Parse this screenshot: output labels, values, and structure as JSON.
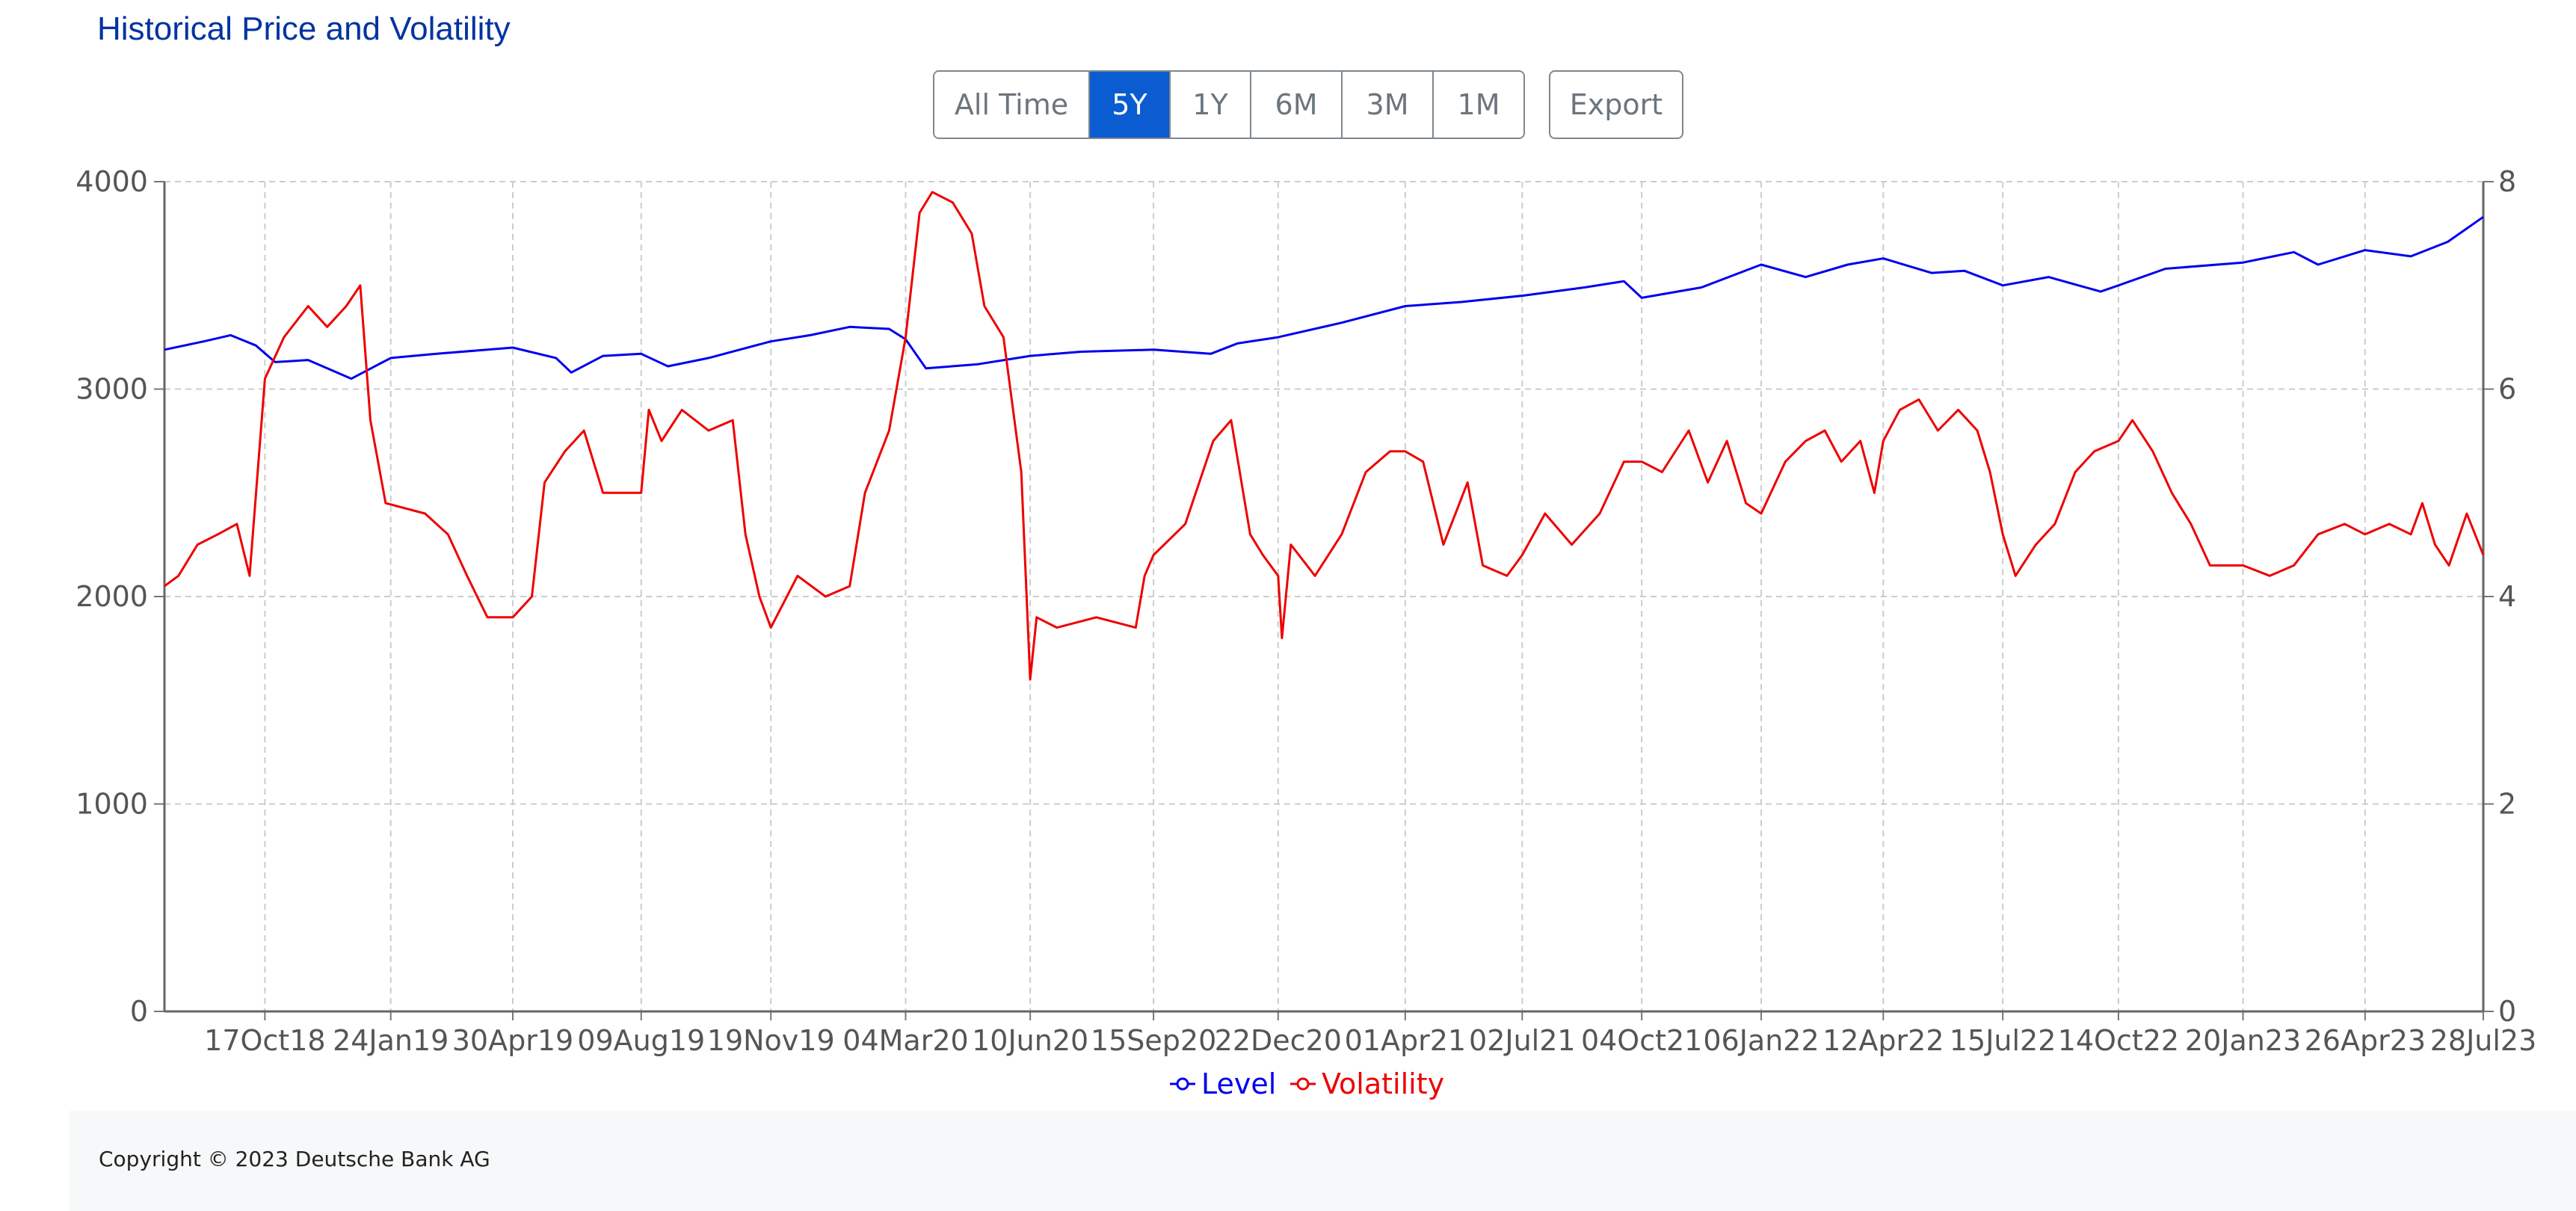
{
  "title": "Historical Price and Volatility",
  "range_buttons": [
    "All Time",
    "5Y",
    "1Y",
    "6M",
    "3M",
    "1M"
  ],
  "active_range": "5Y",
  "export_label": "Export",
  "copyright": "Copyright © 2023 Deutsche Bank AG",
  "colors": {
    "title": "#0033a0",
    "level": "#0000ee",
    "volatility": "#ee0000",
    "active_button": "#0a5cd0",
    "grid": "#cccccc"
  },
  "chart_data": {
    "type": "line",
    "x_ticks": [
      "17Oct18",
      "24Jan19",
      "30Apr19",
      "09Aug19",
      "19Nov19",
      "04Mar20",
      "10Jun20",
      "15Sep20",
      "22Dec20",
      "01Apr21",
      "02Jul21",
      "04Oct21",
      "06Jan22",
      "12Apr22",
      "15Jul22",
      "14Oct22",
      "20Jan23",
      "26Apr23",
      "28Jul23"
    ],
    "x_range": [
      "2018-07-30",
      "2023-07-28"
    ],
    "y_left": {
      "ticks": [
        0,
        1000,
        2000,
        3000,
        4000
      ],
      "range": [
        0,
        4000
      ]
    },
    "y_right": {
      "ticks": [
        0,
        2,
        4,
        6,
        8
      ],
      "range": [
        0,
        8
      ]
    },
    "grid": true,
    "legend_position": "bottom-center",
    "series": [
      {
        "name": "Level",
        "axis": "left",
        "points": [
          [
            "2018-07-30",
            3190
          ],
          [
            "2018-08-30",
            3230
          ],
          [
            "2018-09-20",
            3260
          ],
          [
            "2018-10-10",
            3210
          ],
          [
            "2018-10-25",
            3130
          ],
          [
            "2018-11-20",
            3140
          ],
          [
            "2018-12-24",
            3050
          ],
          [
            "2019-01-24",
            3150
          ],
          [
            "2019-03-01",
            3170
          ],
          [
            "2019-04-30",
            3200
          ],
          [
            "2019-06-03",
            3150
          ],
          [
            "2019-06-15",
            3080
          ],
          [
            "2019-07-10",
            3160
          ],
          [
            "2019-08-09",
            3170
          ],
          [
            "2019-08-30",
            3110
          ],
          [
            "2019-10-01",
            3150
          ],
          [
            "2019-11-19",
            3230
          ],
          [
            "2019-12-20",
            3260
          ],
          [
            "2020-01-20",
            3300
          ],
          [
            "2020-02-20",
            3290
          ],
          [
            "2020-03-04",
            3240
          ],
          [
            "2020-03-20",
            3100
          ],
          [
            "2020-04-30",
            3120
          ],
          [
            "2020-06-10",
            3160
          ],
          [
            "2020-07-20",
            3180
          ],
          [
            "2020-09-15",
            3190
          ],
          [
            "2020-10-30",
            3170
          ],
          [
            "2020-11-20",
            3220
          ],
          [
            "2020-12-22",
            3250
          ],
          [
            "2021-02-10",
            3320
          ],
          [
            "2021-04-01",
            3400
          ],
          [
            "2021-05-15",
            3420
          ],
          [
            "2021-07-02",
            3450
          ],
          [
            "2021-08-20",
            3490
          ],
          [
            "2021-09-20",
            3520
          ],
          [
            "2021-10-04",
            3440
          ],
          [
            "2021-11-20",
            3490
          ],
          [
            "2022-01-06",
            3600
          ],
          [
            "2022-02-10",
            3540
          ],
          [
            "2022-03-15",
            3600
          ],
          [
            "2022-04-12",
            3630
          ],
          [
            "2022-05-20",
            3560
          ],
          [
            "2022-06-15",
            3570
          ],
          [
            "2022-07-15",
            3500
          ],
          [
            "2022-08-20",
            3540
          ],
          [
            "2022-09-30",
            3470
          ],
          [
            "2022-10-14",
            3500
          ],
          [
            "2022-11-20",
            3580
          ],
          [
            "2023-01-20",
            3610
          ],
          [
            "2023-03-01",
            3660
          ],
          [
            "2023-03-20",
            3600
          ],
          [
            "2023-04-26",
            3670
          ],
          [
            "2023-06-01",
            3640
          ],
          [
            "2023-06-30",
            3710
          ],
          [
            "2023-07-28",
            3830
          ]
        ]
      },
      {
        "name": "Volatility",
        "axis": "right",
        "points": [
          [
            "2018-07-30",
            4.1
          ],
          [
            "2018-08-10",
            4.2
          ],
          [
            "2018-08-25",
            4.5
          ],
          [
            "2018-09-10",
            4.6
          ],
          [
            "2018-09-25",
            4.7
          ],
          [
            "2018-10-05",
            4.2
          ],
          [
            "2018-10-17",
            6.1
          ],
          [
            "2018-11-01",
            6.5
          ],
          [
            "2018-11-20",
            6.8
          ],
          [
            "2018-12-05",
            6.6
          ],
          [
            "2018-12-20",
            6.8
          ],
          [
            "2018-12-31",
            7.0
          ],
          [
            "2019-01-08",
            5.7
          ],
          [
            "2019-01-20",
            4.9
          ],
          [
            "2019-02-20",
            4.8
          ],
          [
            "2019-03-10",
            4.6
          ],
          [
            "2019-03-25",
            4.2
          ],
          [
            "2019-04-10",
            3.8
          ],
          [
            "2019-04-30",
            3.8
          ],
          [
            "2019-05-15",
            4.0
          ],
          [
            "2019-05-25",
            5.1
          ],
          [
            "2019-06-10",
            5.4
          ],
          [
            "2019-06-25",
            5.6
          ],
          [
            "2019-07-10",
            5.0
          ],
          [
            "2019-08-09",
            5.0
          ],
          [
            "2019-08-15",
            5.8
          ],
          [
            "2019-08-25",
            5.5
          ],
          [
            "2019-09-10",
            5.8
          ],
          [
            "2019-10-01",
            5.6
          ],
          [
            "2019-10-20",
            5.7
          ],
          [
            "2019-10-30",
            4.6
          ],
          [
            "2019-11-10",
            4.0
          ],
          [
            "2019-11-19",
            3.7
          ],
          [
            "2019-12-10",
            4.2
          ],
          [
            "2020-01-01",
            4.0
          ],
          [
            "2020-01-20",
            4.1
          ],
          [
            "2020-02-01",
            5.0
          ],
          [
            "2020-02-20",
            5.6
          ],
          [
            "2020-03-04",
            6.5
          ],
          [
            "2020-03-15",
            7.7
          ],
          [
            "2020-03-25",
            7.9
          ],
          [
            "2020-04-10",
            7.8
          ],
          [
            "2020-04-25",
            7.5
          ],
          [
            "2020-05-05",
            6.8
          ],
          [
            "2020-05-20",
            6.5
          ],
          [
            "2020-06-03",
            5.2
          ],
          [
            "2020-06-10",
            3.2
          ],
          [
            "2020-06-15",
            3.8
          ],
          [
            "2020-07-01",
            3.7
          ],
          [
            "2020-08-01",
            3.8
          ],
          [
            "2020-09-01",
            3.7
          ],
          [
            "2020-09-08",
            4.2
          ],
          [
            "2020-09-15",
            4.4
          ],
          [
            "2020-10-10",
            4.7
          ],
          [
            "2020-11-01",
            5.5
          ],
          [
            "2020-11-15",
            5.7
          ],
          [
            "2020-11-30",
            4.6
          ],
          [
            "2020-12-10",
            4.4
          ],
          [
            "2020-12-22",
            4.2
          ],
          [
            "2020-12-25",
            3.6
          ],
          [
            "2021-01-01",
            4.5
          ],
          [
            "2021-01-20",
            4.2
          ],
          [
            "2021-02-10",
            4.6
          ],
          [
            "2021-03-01",
            5.2
          ],
          [
            "2021-03-20",
            5.4
          ],
          [
            "2021-04-01",
            5.4
          ],
          [
            "2021-04-15",
            5.3
          ],
          [
            "2021-05-01",
            4.5
          ],
          [
            "2021-05-20",
            5.1
          ],
          [
            "2021-06-01",
            4.3
          ],
          [
            "2021-06-20",
            4.2
          ],
          [
            "2021-07-02",
            4.4
          ],
          [
            "2021-07-20",
            4.8
          ],
          [
            "2021-08-10",
            4.5
          ],
          [
            "2021-09-01",
            4.8
          ],
          [
            "2021-09-20",
            5.3
          ],
          [
            "2021-10-04",
            5.3
          ],
          [
            "2021-10-20",
            5.2
          ],
          [
            "2021-11-10",
            5.6
          ],
          [
            "2021-11-25",
            5.1
          ],
          [
            "2021-12-10",
            5.5
          ],
          [
            "2021-12-25",
            4.9
          ],
          [
            "2022-01-06",
            4.8
          ],
          [
            "2022-01-25",
            5.3
          ],
          [
            "2022-02-10",
            5.5
          ],
          [
            "2022-02-25",
            5.6
          ],
          [
            "2022-03-10",
            5.3
          ],
          [
            "2022-03-25",
            5.5
          ],
          [
            "2022-04-05",
            5.0
          ],
          [
            "2022-04-12",
            5.5
          ],
          [
            "2022-04-25",
            5.8
          ],
          [
            "2022-05-10",
            5.9
          ],
          [
            "2022-05-25",
            5.6
          ],
          [
            "2022-06-10",
            5.8
          ],
          [
            "2022-06-25",
            5.6
          ],
          [
            "2022-07-05",
            5.2
          ],
          [
            "2022-07-15",
            4.6
          ],
          [
            "2022-07-25",
            4.2
          ],
          [
            "2022-08-10",
            4.5
          ],
          [
            "2022-08-25",
            4.7
          ],
          [
            "2022-09-10",
            5.2
          ],
          [
            "2022-09-25",
            5.4
          ],
          [
            "2022-10-14",
            5.5
          ],
          [
            "2022-10-25",
            5.7
          ],
          [
            "2022-11-10",
            5.4
          ],
          [
            "2022-11-25",
            5.0
          ],
          [
            "2022-12-10",
            4.7
          ],
          [
            "2022-12-25",
            4.3
          ],
          [
            "2023-01-20",
            4.3
          ],
          [
            "2023-02-10",
            4.2
          ],
          [
            "2023-03-01",
            4.3
          ],
          [
            "2023-03-20",
            4.6
          ],
          [
            "2023-04-10",
            4.7
          ],
          [
            "2023-04-26",
            4.6
          ],
          [
            "2023-05-15",
            4.7
          ],
          [
            "2023-06-01",
            4.6
          ],
          [
            "2023-06-10",
            4.9
          ],
          [
            "2023-06-20",
            4.5
          ],
          [
            "2023-07-01",
            4.3
          ],
          [
            "2023-07-15",
            4.8
          ],
          [
            "2023-07-28",
            4.4
          ]
        ]
      }
    ]
  }
}
